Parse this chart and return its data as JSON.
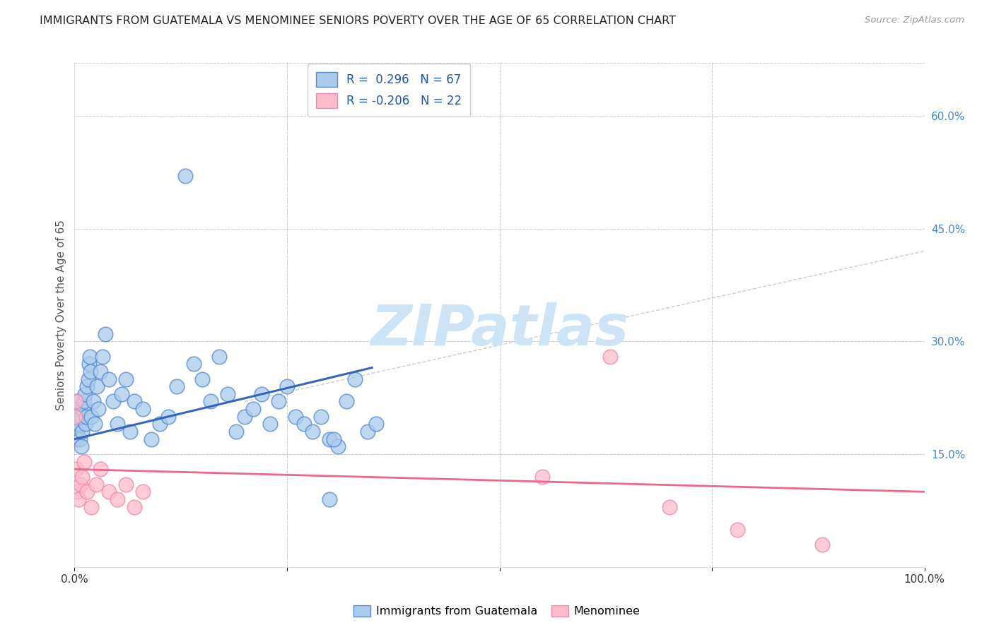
{
  "title": "IMMIGRANTS FROM GUATEMALA VS MENOMINEE SENIORS POVERTY OVER THE AGE OF 65 CORRELATION CHART",
  "source": "Source: ZipAtlas.com",
  "ylabel": "Seniors Poverty Over the Age of 65",
  "xlim": [
    0,
    100
  ],
  "ylim": [
    0,
    67
  ],
  "right_yticks": [
    0,
    15,
    30,
    45,
    60
  ],
  "right_yticklabels": [
    "",
    "15.0%",
    "30.0%",
    "45.0%",
    "60.0%"
  ],
  "legend_r1": "R =  0.296",
  "legend_n1": "N = 67",
  "legend_r2": "R = -0.206",
  "legend_n2": "N = 22",
  "color_blue": "#aaccee",
  "color_blue_edge": "#5588cc",
  "color_blue_line": "#3366bb",
  "color_pink": "#ffbbcc",
  "color_pink_edge": "#ee88aa",
  "color_pink_line": "#ee6688",
  "color_gray_line": "#aaaaaa",
  "watermark_color": "#cce4f5",
  "label_blue": "Immigrants from Guatemala",
  "label_pink": "Menominee",
  "blue_scatter_x": [
    0.1,
    0.15,
    0.2,
    0.25,
    0.3,
    0.35,
    0.4,
    0.5,
    0.6,
    0.7,
    0.8,
    0.9,
    1.0,
    1.1,
    1.2,
    1.3,
    1.4,
    1.5,
    1.6,
    1.7,
    1.8,
    1.9,
    2.0,
    2.2,
    2.4,
    2.6,
    2.8,
    3.0,
    3.3,
    3.6,
    4.0,
    4.5,
    5.0,
    5.5,
    6.0,
    6.5,
    7.0,
    8.0,
    9.0,
    10.0,
    11.0,
    12.0,
    13.0,
    14.0,
    15.0,
    16.0,
    17.0,
    18.0,
    19.0,
    20.0,
    21.0,
    22.0,
    23.0,
    24.0,
    25.0,
    26.0,
    27.0,
    28.0,
    29.0,
    30.0,
    31.0,
    32.0,
    33.0,
    34.5,
    35.5,
    30.0,
    30.5
  ],
  "blue_scatter_y": [
    17,
    18,
    20,
    19,
    18,
    22,
    21,
    19,
    17,
    20,
    16,
    18,
    21,
    22,
    23,
    19,
    20,
    24,
    25,
    27,
    28,
    26,
    20,
    22,
    19,
    24,
    21,
    26,
    28,
    31,
    25,
    22,
    19,
    23,
    25,
    18,
    22,
    21,
    17,
    19,
    20,
    24,
    52,
    27,
    25,
    22,
    28,
    23,
    18,
    20,
    21,
    23,
    19,
    22,
    24,
    20,
    19,
    18,
    20,
    17,
    16,
    22,
    25,
    18,
    19,
    9,
    17
  ],
  "pink_scatter_x": [
    0.05,
    0.1,
    0.2,
    0.3,
    0.5,
    0.7,
    0.9,
    1.1,
    1.5,
    2.0,
    2.5,
    3.0,
    4.0,
    5.0,
    6.0,
    7.0,
    8.0,
    55.0,
    63.0,
    70.0,
    78.0,
    88.0
  ],
  "pink_scatter_y": [
    20,
    22,
    13,
    10,
    9,
    11,
    12,
    14,
    10,
    8,
    11,
    13,
    10,
    9,
    11,
    8,
    10,
    12,
    28,
    8,
    5,
    3
  ],
  "blue_trendline_x": [
    0,
    35
  ],
  "blue_trendline_y": [
    17.0,
    26.5
  ],
  "pink_trendline_x": [
    0,
    100
  ],
  "pink_trendline_y": [
    13.0,
    10.0
  ],
  "gray_trendline_x": [
    20,
    100
  ],
  "gray_trendline_y": [
    22,
    42
  ],
  "bg_color": "#ffffff",
  "grid_color": "#cccccc"
}
